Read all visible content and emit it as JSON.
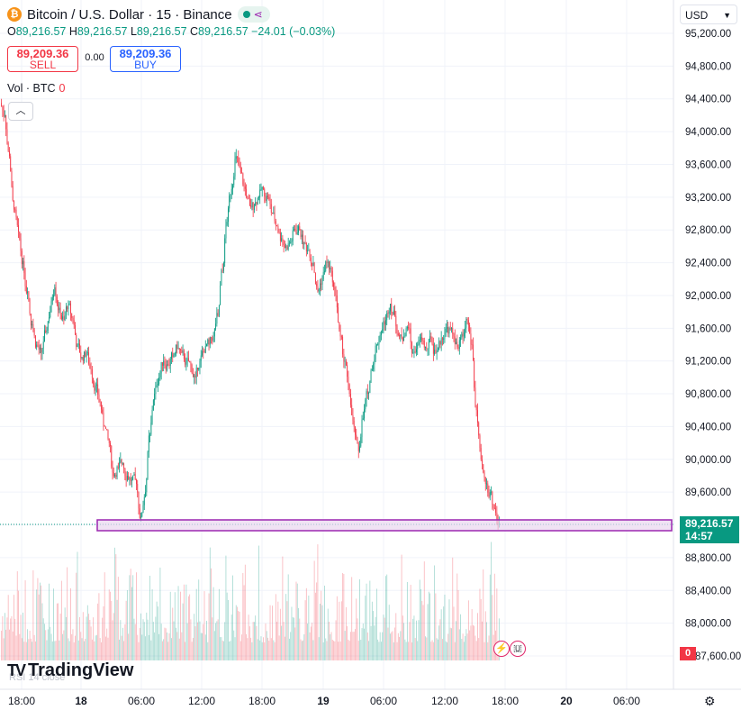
{
  "header": {
    "logo_glyph": "₿",
    "symbol_title": "Bitcoin / U.S. Dollar · 15 · Binance",
    "share_icon": "share-icon"
  },
  "ohlc": {
    "o_label": "O",
    "o": "89,216.57",
    "h_label": "H",
    "h": "89,216.57",
    "l_label": "L",
    "l": "89,216.57",
    "c_label": "C",
    "c": "89,216.57",
    "change": "−24.01 (−0.03%)"
  },
  "trade": {
    "sell_price": "89,209.36",
    "sell_label": "SELL",
    "spread": "0.00",
    "buy_price": "89,209.36",
    "buy_label": "BUY"
  },
  "volume_legend": {
    "label": "Vol · BTC",
    "value": "0"
  },
  "currency": {
    "selected": "USD"
  },
  "price_axis": {
    "ticks": [
      "95,200.00",
      "94,800.00",
      "94,400.00",
      "94,000.00",
      "93,600.00",
      "93,200.00",
      "92,800.00",
      "92,400.00",
      "92,000.00",
      "91,600.00",
      "91,200.00",
      "90,800.00",
      "90,400.00",
      "90,000.00",
      "89,600.00",
      "89,200.00",
      "88,800.00",
      "88,400.00",
      "88,000.00",
      "87,600.00"
    ],
    "current_price": "89,216.57",
    "countdown": "14:57",
    "volume_badge": "0"
  },
  "time_axis": {
    "ticks": [
      "18:00",
      "18",
      "06:00",
      "12:00",
      "18:00",
      "19",
      "06:00",
      "12:00",
      "18:00",
      "20",
      "06:00"
    ]
  },
  "branding": {
    "name": "TradingView",
    "mark": "TV",
    "rsi_ghost": "RSI 14 close"
  },
  "colors": {
    "up": "#089981",
    "down": "#f23645",
    "zone_border": "#9c27b0",
    "zone_fill": "#ead7f0"
  },
  "chart_data": {
    "type": "candlestick",
    "interval": "15",
    "ylim": [
      87600,
      95200
    ],
    "zone": {
      "low": 89080,
      "high": 89220
    },
    "close_series": [
      94200,
      93700,
      93050,
      92780,
      92420,
      92050,
      91650,
      91400,
      91300,
      91550,
      91800,
      92100,
      91850,
      91700,
      91900,
      91700,
      91400,
      91250,
      91300,
      91100,
      90900,
      90700,
      90400,
      90200,
      89800,
      89900,
      89950,
      89800,
      89750,
      89700,
      89300,
      89600,
      90300,
      90800,
      91000,
      91200,
      91150,
      91250,
      91350,
      91300,
      91200,
      91150,
      91000,
      91200,
      91300,
      91400,
      91500,
      91750,
      92300,
      92900,
      93300,
      93700,
      93500,
      93300,
      93100,
      93100,
      93200,
      93300,
      93200,
      93000,
      92850,
      92700,
      92600,
      92650,
      92800,
      92800,
      92650,
      92550,
      92400,
      92050,
      92200,
      92400,
      92300,
      92000,
      91500,
      91200,
      90800,
      90400,
      90100,
      90500,
      90800,
      91100,
      91400,
      91550,
      91700,
      91900,
      91750,
      91500,
      91500,
      91600,
      91300,
      91400,
      91450,
      91350,
      91450,
      91300,
      91400,
      91550,
      91600,
      91500,
      91350,
      91500,
      91700,
      91400,
      90600,
      90000,
      89700,
      89600,
      89400,
      89217
    ]
  }
}
